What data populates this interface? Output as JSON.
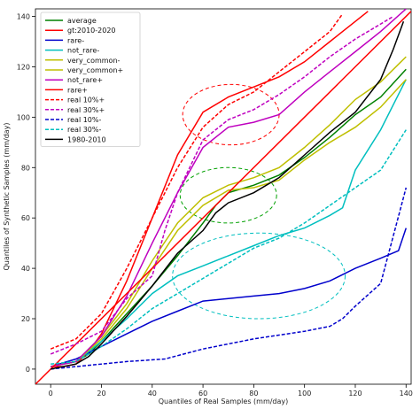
{
  "chart_data": {
    "type": "line",
    "xlabel": "Quantiles of Real Samples (mm/day)",
    "ylabel": "Quantiles of Synthetic Samples (mm/day)",
    "xlim": [
      -6,
      142
    ],
    "ylim": [
      -6,
      143
    ],
    "xticks": [
      0,
      20,
      40,
      60,
      80,
      100,
      120,
      140
    ],
    "yticks": [
      0,
      20,
      40,
      60,
      80,
      100,
      120,
      140
    ],
    "grid": false,
    "legend_position": "top-left",
    "series": [
      {
        "name": "average",
        "color": "#008000",
        "dash": "solid",
        "points": [
          [
            0,
            1
          ],
          [
            5,
            2
          ],
          [
            10,
            3
          ],
          [
            15,
            6
          ],
          [
            20,
            11
          ],
          [
            30,
            22
          ],
          [
            40,
            33
          ],
          [
            50,
            45
          ],
          [
            60,
            58
          ],
          [
            65,
            65
          ],
          [
            70,
            70
          ],
          [
            80,
            73
          ],
          [
            90,
            77
          ],
          [
            100,
            84
          ],
          [
            110,
            92
          ],
          [
            120,
            101
          ],
          [
            130,
            108
          ],
          [
            140,
            119
          ]
        ]
      },
      {
        "name": "gt:2010-2020",
        "color": "#ff0000",
        "dash": "solid",
        "points": [
          [
            0,
            1
          ],
          [
            5,
            1
          ],
          [
            10,
            2
          ],
          [
            15,
            7
          ],
          [
            20,
            14
          ],
          [
            30,
            35
          ],
          [
            40,
            60
          ],
          [
            50,
            85
          ],
          [
            60,
            102
          ],
          [
            70,
            108
          ],
          [
            80,
            112
          ],
          [
            90,
            116
          ],
          [
            100,
            122
          ],
          [
            110,
            130
          ],
          [
            120,
            138
          ],
          [
            125,
            142
          ]
        ]
      },
      {
        "name": "rare-",
        "color": "#0000cc",
        "dash": "solid",
        "points": [
          [
            0,
            1
          ],
          [
            10,
            4
          ],
          [
            20,
            9
          ],
          [
            30,
            14
          ],
          [
            40,
            19
          ],
          [
            50,
            23
          ],
          [
            60,
            27
          ],
          [
            70,
            28
          ],
          [
            80,
            29
          ],
          [
            90,
            30
          ],
          [
            100,
            32
          ],
          [
            110,
            35
          ],
          [
            120,
            40
          ],
          [
            130,
            44
          ],
          [
            137,
            47
          ],
          [
            140,
            56
          ]
        ]
      },
      {
        "name": "not_rare-",
        "color": "#00bfbf",
        "dash": "solid",
        "points": [
          [
            0,
            1
          ],
          [
            10,
            3
          ],
          [
            20,
            11
          ],
          [
            30,
            20
          ],
          [
            40,
            30
          ],
          [
            50,
            37
          ],
          [
            60,
            41
          ],
          [
            70,
            45
          ],
          [
            80,
            49
          ],
          [
            90,
            53
          ],
          [
            100,
            56
          ],
          [
            110,
            61
          ],
          [
            115,
            64
          ],
          [
            120,
            79
          ],
          [
            130,
            95
          ],
          [
            140,
            115
          ]
        ]
      },
      {
        "name": "very_common-",
        "color": "#bfbf00",
        "dash": "solid",
        "points": [
          [
            0,
            1
          ],
          [
            10,
            3
          ],
          [
            20,
            12
          ],
          [
            30,
            24
          ],
          [
            40,
            40
          ],
          [
            50,
            55
          ],
          [
            60,
            65
          ],
          [
            70,
            71
          ],
          [
            80,
            72
          ],
          [
            90,
            75
          ],
          [
            100,
            83
          ],
          [
            110,
            90
          ],
          [
            120,
            96
          ],
          [
            130,
            104
          ],
          [
            140,
            115
          ]
        ]
      },
      {
        "name": "very_common+",
        "color": "#bfbf00",
        "dash": "solid",
        "points": [
          [
            0,
            1
          ],
          [
            10,
            3
          ],
          [
            20,
            13
          ],
          [
            30,
            26
          ],
          [
            40,
            43
          ],
          [
            50,
            58
          ],
          [
            60,
            68
          ],
          [
            70,
            73
          ],
          [
            80,
            76
          ],
          [
            90,
            80
          ],
          [
            100,
            88
          ],
          [
            110,
            97
          ],
          [
            120,
            107
          ],
          [
            130,
            114
          ],
          [
            138,
            122
          ],
          [
            140,
            124
          ]
        ]
      },
      {
        "name": "not_rare+",
        "color": "#bf00bf",
        "dash": "solid",
        "points": [
          [
            0,
            1
          ],
          [
            10,
            3
          ],
          [
            20,
            13
          ],
          [
            30,
            29
          ],
          [
            40,
            50
          ],
          [
            50,
            70
          ],
          [
            60,
            88
          ],
          [
            70,
            96
          ],
          [
            80,
            98
          ],
          [
            90,
            101
          ],
          [
            100,
            110
          ],
          [
            110,
            118
          ],
          [
            120,
            126
          ],
          [
            130,
            134
          ],
          [
            140,
            143
          ]
        ]
      },
      {
        "name": "rare+",
        "color": "#ff0000",
        "dash": "solid",
        "points": [
          [
            -6,
            -6
          ],
          [
            142,
            142
          ]
        ]
      },
      {
        "name": "real 10%+",
        "color": "#ff0000",
        "dash": "dashed",
        "points": [
          [
            0,
            8
          ],
          [
            10,
            12
          ],
          [
            20,
            22
          ],
          [
            30,
            40
          ],
          [
            40,
            60
          ],
          [
            50,
            80
          ],
          [
            60,
            96
          ],
          [
            70,
            105
          ],
          [
            80,
            110
          ],
          [
            90,
            118
          ],
          [
            100,
            126
          ],
          [
            110,
            134
          ],
          [
            115,
            141
          ]
        ]
      },
      {
        "name": "real 30%+",
        "color": "#bf00bf",
        "dash": "dashed",
        "points": [
          [
            0,
            6
          ],
          [
            10,
            10
          ],
          [
            20,
            15
          ],
          [
            30,
            28
          ],
          [
            40,
            37
          ],
          [
            45,
            55
          ],
          [
            50,
            70
          ],
          [
            60,
            91
          ],
          [
            70,
            99
          ],
          [
            80,
            103
          ],
          [
            90,
            109
          ],
          [
            100,
            116
          ],
          [
            110,
            124
          ],
          [
            120,
            131
          ],
          [
            130,
            137
          ],
          [
            135,
            140
          ]
        ]
      },
      {
        "name": "real 10%-",
        "color": "#0000cc",
        "dash": "dashed",
        "points": [
          [
            0,
            0
          ],
          [
            10,
            1
          ],
          [
            20,
            2
          ],
          [
            30,
            3
          ],
          [
            45,
            4
          ],
          [
            60,
            8
          ],
          [
            80,
            12
          ],
          [
            100,
            15
          ],
          [
            110,
            17
          ],
          [
            115,
            20
          ],
          [
            120,
            25
          ],
          [
            130,
            34
          ],
          [
            140,
            72
          ]
        ]
      },
      {
        "name": "real 30%-",
        "color": "#00bfbf",
        "dash": "dashed",
        "points": [
          [
            0,
            2
          ],
          [
            10,
            3
          ],
          [
            20,
            9
          ],
          [
            30,
            16
          ],
          [
            40,
            24
          ],
          [
            50,
            30
          ],
          [
            60,
            36
          ],
          [
            70,
            42
          ],
          [
            80,
            48
          ],
          [
            90,
            52
          ],
          [
            100,
            58
          ],
          [
            110,
            65
          ],
          [
            120,
            72
          ],
          [
            130,
            79
          ],
          [
            140,
            95
          ]
        ]
      },
      {
        "name": "1980-2010",
        "color": "#000000",
        "dash": "solid",
        "points": [
          [
            0,
            0
          ],
          [
            10,
            2
          ],
          [
            15,
            5
          ],
          [
            20,
            10
          ],
          [
            30,
            21
          ],
          [
            40,
            33
          ],
          [
            50,
            46
          ],
          [
            60,
            55
          ],
          [
            65,
            62
          ],
          [
            70,
            66
          ],
          [
            80,
            70
          ],
          [
            90,
            76
          ],
          [
            100,
            85
          ],
          [
            110,
            94
          ],
          [
            120,
            102
          ],
          [
            130,
            115
          ],
          [
            135,
            127
          ],
          [
            139,
            138
          ]
        ]
      }
    ],
    "annotations": [
      {
        "shape": "dashed-circle",
        "color": "#ff0000",
        "cx": 71,
        "cy": 101,
        "rx": 19,
        "ry": 12
      },
      {
        "shape": "dashed-circle",
        "color": "#00a000",
        "cx": 70,
        "cy": 69,
        "rx": 19,
        "ry": 11
      },
      {
        "shape": "dashed-circle",
        "color": "#00bfbf",
        "cx": 82,
        "cy": 37,
        "rx": 34,
        "ry": 17
      }
    ]
  }
}
